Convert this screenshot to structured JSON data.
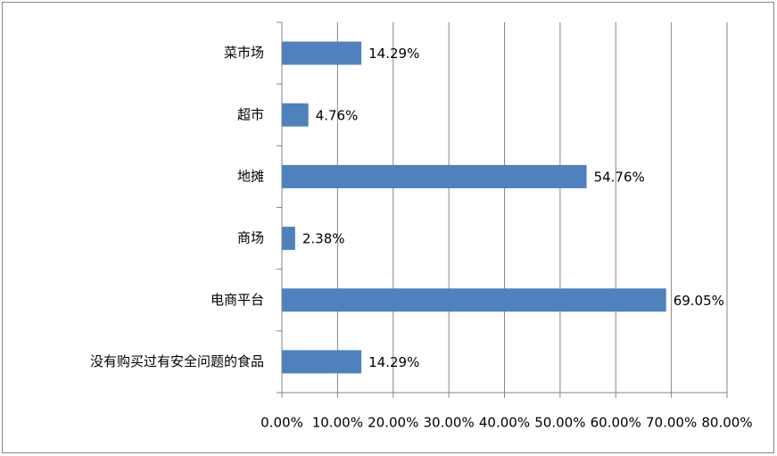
{
  "chart_data": {
    "type": "bar",
    "orientation": "horizontal",
    "categories": [
      "菜市场",
      "超市",
      "地摊",
      "商场",
      "电商平台",
      "没有购买过有安全问题的食品"
    ],
    "values": [
      14.29,
      4.76,
      54.76,
      2.38,
      69.05,
      14.29
    ],
    "value_labels": [
      "14.29%",
      "4.76%",
      "54.76%",
      "2.38%",
      "69.05%",
      "14.29%"
    ],
    "color": "#4f81bd",
    "xlim": [
      0,
      80
    ],
    "xticks": [
      {
        "value": 0,
        "label": "0.00%"
      },
      {
        "value": 10,
        "label": "10.00%"
      },
      {
        "value": 20,
        "label": "20.00%"
      },
      {
        "value": 30,
        "label": "30.00%"
      },
      {
        "value": 40,
        "label": "40.00%"
      },
      {
        "value": 50,
        "label": "50.00%"
      },
      {
        "value": 60,
        "label": "60.00%"
      },
      {
        "value": 70,
        "label": "70.00%"
      },
      {
        "value": 80,
        "label": "80.00%"
      }
    ],
    "grid": true
  }
}
